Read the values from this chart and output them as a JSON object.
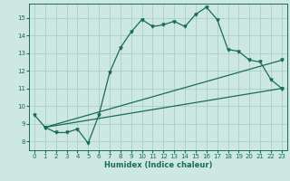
{
  "xlabel": "Humidex (Indice chaleur)",
  "bg_color": "#cce8e0",
  "grid_color": "#aacfc8",
  "line_color": "#1a6b5a",
  "xlim": [
    -0.5,
    23.5
  ],
  "ylim": [
    7.5,
    15.8
  ],
  "xticks": [
    0,
    1,
    2,
    3,
    4,
    5,
    6,
    7,
    8,
    9,
    10,
    11,
    12,
    13,
    14,
    15,
    16,
    17,
    18,
    19,
    20,
    21,
    22,
    23
  ],
  "yticks": [
    8,
    9,
    10,
    11,
    12,
    13,
    14,
    15
  ],
  "line1_x": [
    0,
    1,
    2,
    3,
    4,
    5,
    6,
    7,
    8,
    9,
    10,
    11,
    12,
    13,
    14,
    15,
    16,
    17,
    18,
    19,
    20,
    21,
    22,
    23
  ],
  "line1_y": [
    9.5,
    8.8,
    8.5,
    8.5,
    8.7,
    7.9,
    9.5,
    11.9,
    13.3,
    14.2,
    14.9,
    14.5,
    14.6,
    14.8,
    14.5,
    15.2,
    15.6,
    14.9,
    13.2,
    13.1,
    12.6,
    12.5,
    11.5,
    11.0
  ],
  "line2_x": [
    1,
    23
  ],
  "line2_y": [
    8.8,
    12.6
  ],
  "line3_x": [
    1,
    23
  ],
  "line3_y": [
    8.8,
    11.0
  ]
}
